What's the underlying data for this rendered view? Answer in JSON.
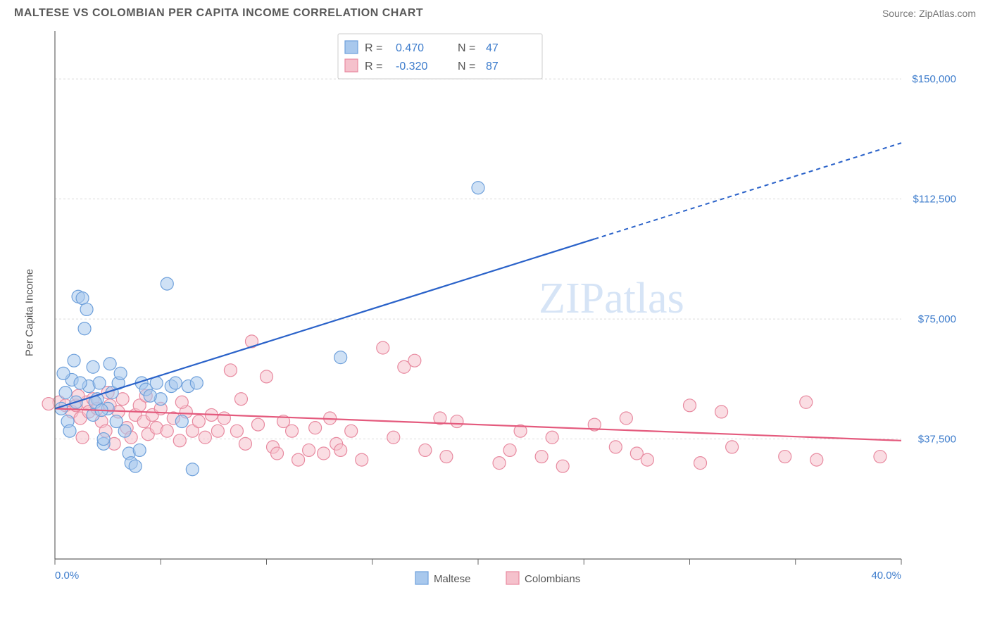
{
  "header": {
    "title": "MALTESE VS COLOMBIAN PER CAPITA INCOME CORRELATION CHART",
    "source_prefix": "Source: ",
    "source_name": "ZipAtlas.com"
  },
  "watermark": "ZIPatlas",
  "chart": {
    "type": "scatter",
    "ylabel": "Per Capita Income",
    "xlim": [
      0,
      40
    ],
    "ylim": [
      0,
      165000
    ],
    "xtick_positions": [
      0,
      5,
      10,
      15,
      20,
      25,
      30,
      35,
      40
    ],
    "xtick_labels_shown": {
      "0": "0.0%",
      "40": "40.0%"
    },
    "ytick_values": [
      37500,
      75000,
      112500,
      150000
    ],
    "ytick_labels": [
      "$37,500",
      "$75,000",
      "$112,500",
      "$150,000"
    ],
    "background_color": "#ffffff",
    "grid_color": "#dcdcdc",
    "axis_color": "#666666",
    "marker_radius": 9,
    "marker_stroke_width": 1.2,
    "marker_opacity": 0.55,
    "series": [
      {
        "name": "Maltese",
        "fill_color": "#a8c8ed",
        "stroke_color": "#6ea0db",
        "line_color": "#2a62c9",
        "R": "0.470",
        "N": "47",
        "trend": {
          "x1": 0,
          "y1": 47000,
          "x2": 25.5,
          "y2": 100000,
          "dashed_x2": 40,
          "dashed_y2": 130000
        },
        "points": [
          [
            0.3,
            47000
          ],
          [
            0.5,
            52000
          ],
          [
            0.6,
            43000
          ],
          [
            0.8,
            56000
          ],
          [
            0.7,
            40000
          ],
          [
            1.0,
            49000
          ],
          [
            1.1,
            82000
          ],
          [
            1.3,
            81500
          ],
          [
            1.5,
            78000
          ],
          [
            1.4,
            72000
          ],
          [
            1.6,
            54000
          ],
          [
            1.8,
            60000
          ],
          [
            1.8,
            45000
          ],
          [
            2.0,
            50000
          ],
          [
            2.1,
            55000
          ],
          [
            2.3,
            36000
          ],
          [
            2.3,
            37500
          ],
          [
            2.5,
            47000
          ],
          [
            2.7,
            52000
          ],
          [
            2.9,
            43000
          ],
          [
            3.0,
            55000
          ],
          [
            3.1,
            58000
          ],
          [
            3.3,
            40000
          ],
          [
            3.5,
            33000
          ],
          [
            3.6,
            30000
          ],
          [
            4.0,
            34000
          ],
          [
            4.1,
            55000
          ],
          [
            4.3,
            53000
          ],
          [
            4.8,
            55000
          ],
          [
            5.0,
            50000
          ],
          [
            5.3,
            86000
          ],
          [
            5.5,
            54000
          ],
          [
            5.7,
            55000
          ],
          [
            6.0,
            43000
          ],
          [
            6.3,
            54000
          ],
          [
            6.5,
            28000
          ],
          [
            6.7,
            55000
          ],
          [
            3.8,
            29000
          ],
          [
            2.6,
            61000
          ],
          [
            1.2,
            55000
          ],
          [
            0.4,
            58000
          ],
          [
            0.9,
            62000
          ],
          [
            13.5,
            63000
          ],
          [
            20.0,
            116000
          ],
          [
            1.9,
            49000
          ],
          [
            2.2,
            46500
          ],
          [
            4.5,
            51000
          ]
        ]
      },
      {
        "name": "Colombians",
        "fill_color": "#f5c1cc",
        "stroke_color": "#e88aa0",
        "line_color": "#e45a7d",
        "R": "-0.320",
        "N": "87",
        "trend": {
          "x1": 0,
          "y1": 47000,
          "x2": 40,
          "y2": 37000
        },
        "points": [
          [
            0.2,
            49000
          ],
          [
            0.5,
            48000
          ],
          [
            0.8,
            46000
          ],
          [
            1.0,
            48000
          ],
          [
            1.2,
            44000
          ],
          [
            1.3,
            38000
          ],
          [
            1.5,
            49000
          ],
          [
            1.6,
            46000
          ],
          [
            1.8,
            50000
          ],
          [
            2.0,
            47000
          ],
          [
            2.2,
            43000
          ],
          [
            2.4,
            40000
          ],
          [
            2.6,
            48000
          ],
          [
            2.8,
            36000
          ],
          [
            3.0,
            46000
          ],
          [
            3.2,
            50000
          ],
          [
            3.4,
            41000
          ],
          [
            3.6,
            38000
          ],
          [
            3.8,
            45000
          ],
          [
            4.0,
            48000
          ],
          [
            4.2,
            43000
          ],
          [
            4.4,
            39000
          ],
          [
            4.6,
            45000
          ],
          [
            4.8,
            41000
          ],
          [
            5.0,
            47000
          ],
          [
            5.3,
            40000
          ],
          [
            5.6,
            44000
          ],
          [
            5.9,
            37000
          ],
          [
            6.2,
            46000
          ],
          [
            6.5,
            40000
          ],
          [
            6.8,
            43000
          ],
          [
            7.1,
            38000
          ],
          [
            7.4,
            45000
          ],
          [
            7.7,
            40000
          ],
          [
            8.0,
            44000
          ],
          [
            8.3,
            59000
          ],
          [
            8.6,
            40000
          ],
          [
            9.0,
            36000
          ],
          [
            9.3,
            68000
          ],
          [
            9.6,
            42000
          ],
          [
            10.0,
            57000
          ],
          [
            10.3,
            35000
          ],
          [
            10.5,
            33000
          ],
          [
            10.8,
            43000
          ],
          [
            11.2,
            40000
          ],
          [
            11.5,
            31000
          ],
          [
            12.0,
            34000
          ],
          [
            12.3,
            41000
          ],
          [
            12.7,
            33000
          ],
          [
            13.0,
            44000
          ],
          [
            13.3,
            36000
          ],
          [
            13.5,
            34000
          ],
          [
            14.0,
            40000
          ],
          [
            14.5,
            31000
          ],
          [
            15.5,
            66000
          ],
          [
            16.0,
            38000
          ],
          [
            16.5,
            60000
          ],
          [
            17.0,
            62000
          ],
          [
            17.5,
            34000
          ],
          [
            18.2,
            44000
          ],
          [
            18.5,
            32000
          ],
          [
            19.0,
            43000
          ],
          [
            21.0,
            30000
          ],
          [
            21.5,
            34000
          ],
          [
            22.0,
            40000
          ],
          [
            23.0,
            32000
          ],
          [
            23.5,
            38000
          ],
          [
            24.0,
            29000
          ],
          [
            25.5,
            42000
          ],
          [
            26.5,
            35000
          ],
          [
            27.0,
            44000
          ],
          [
            27.5,
            33000
          ],
          [
            28.0,
            31000
          ],
          [
            30.0,
            48000
          ],
          [
            30.5,
            30000
          ],
          [
            31.5,
            46000
          ],
          [
            32.0,
            35000
          ],
          [
            34.5,
            32000
          ],
          [
            35.5,
            49000
          ],
          [
            36.0,
            31000
          ],
          [
            39.0,
            32000
          ],
          [
            -0.3,
            48500
          ],
          [
            1.1,
            51000
          ],
          [
            2.5,
            52000
          ],
          [
            4.3,
            51000
          ],
          [
            6.0,
            49000
          ],
          [
            8.8,
            50000
          ]
        ]
      }
    ],
    "stats_legend": {
      "R_label": "R =",
      "N_label": "N ="
    },
    "bottom_legend": {
      "items": [
        "Maltese",
        "Colombians"
      ]
    }
  }
}
